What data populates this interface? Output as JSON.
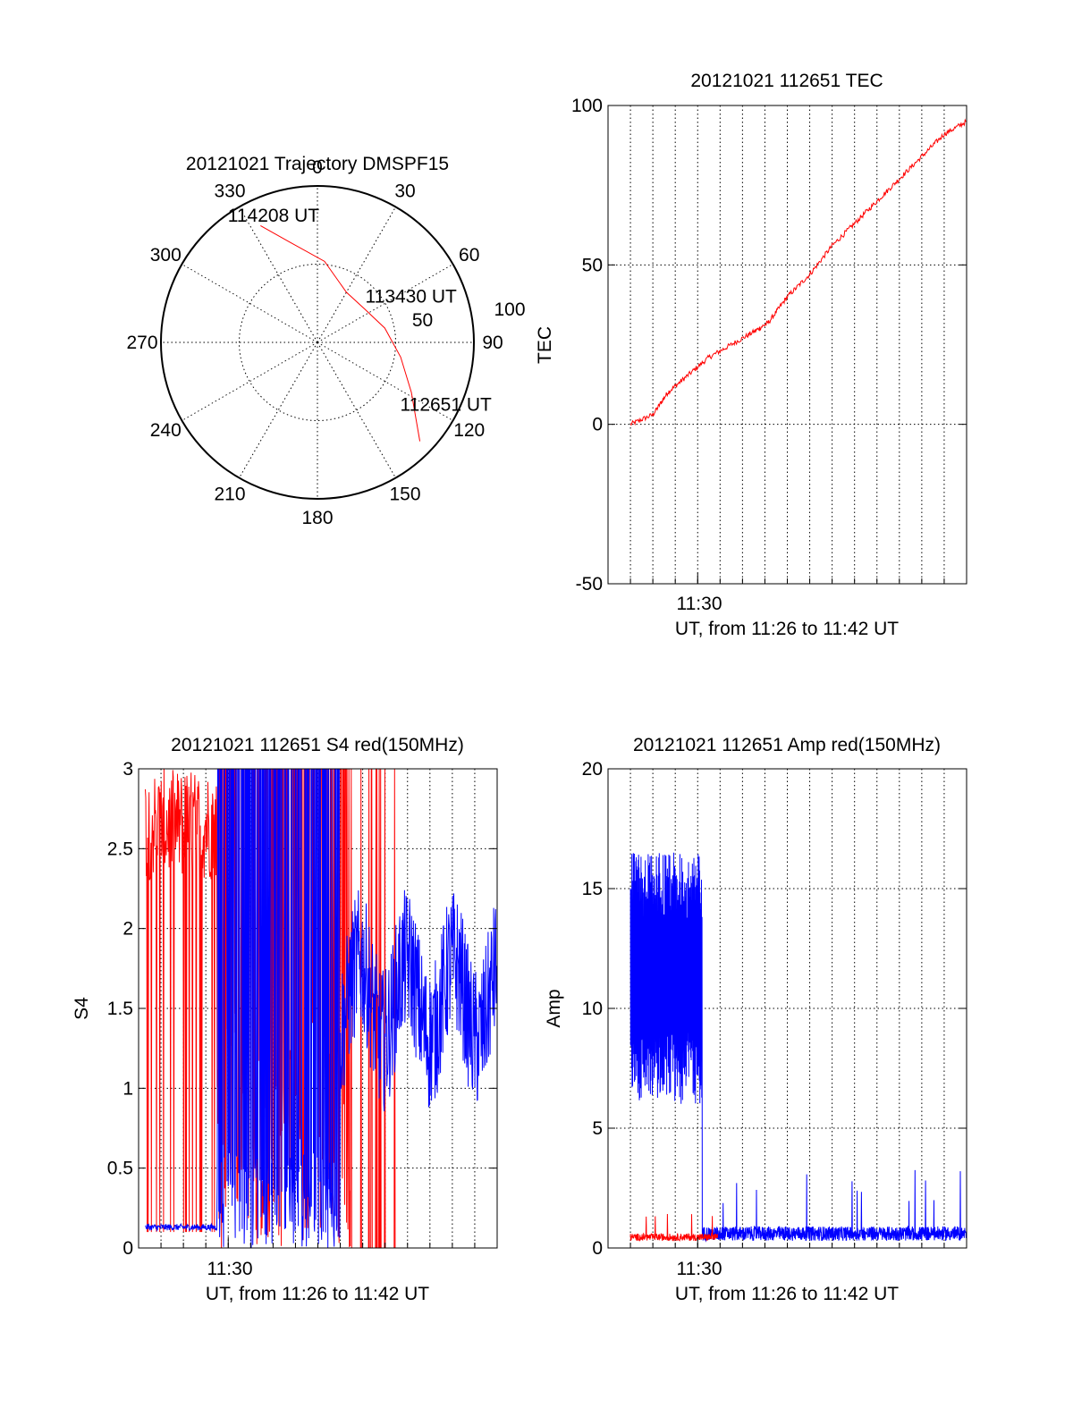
{
  "chart_data": [
    {
      "id": "polar",
      "type": "polar",
      "title": "20121021 Trajectory DMSPF15",
      "angle_labels": [
        "0",
        "30",
        "60",
        "90",
        "120",
        "150",
        "180",
        "210",
        "240",
        "270",
        "300",
        "330"
      ],
      "radial_ticks": [
        50,
        100
      ],
      "radial_tick_labels": [
        "50",
        "100"
      ],
      "rmax": 100,
      "track_color": "#ff0000",
      "track": [
        {
          "az": 134,
          "r": 91
        },
        {
          "az": 128,
          "r": 80
        },
        {
          "az": 118,
          "r": 68
        },
        {
          "az": 100,
          "r": 54
        },
        {
          "az": 78,
          "r": 44
        },
        {
          "az": 55,
          "r": 37
        },
        {
          "az": 30,
          "r": 37
        },
        {
          "az": 5,
          "r": 52
        },
        {
          "az": -15,
          "r": 66
        },
        {
          "az": -26,
          "r": 83
        }
      ],
      "annotations": [
        {
          "text": "114208 UT",
          "az": -20,
          "r": 82
        },
        {
          "text": "113430 UT",
          "az": 67,
          "r": 65
        },
        {
          "text": "112651 UT",
          "az": 118,
          "r": 93
        }
      ]
    },
    {
      "id": "tec",
      "type": "line",
      "title": "20121021 112651 TEC",
      "ylabel": "TEC",
      "xlabel": "UT, from 11:26 to 11:42 UT",
      "xlim": [
        "11:26",
        "11:42"
      ],
      "ylim": [
        -50,
        100
      ],
      "yticks": [
        -50,
        0,
        50,
        100
      ],
      "ytick_labels": [
        "-50",
        "0",
        "50",
        "100"
      ],
      "xtick_label": "11:30",
      "xtick_at": "11:30",
      "series": [
        {
          "color": "#ff0000",
          "x": [
            "11:27:00",
            "11:28:00",
            "11:28:40",
            "11:29:30",
            "11:30:30",
            "11:31:30",
            "11:32:30",
            "11:33:10",
            "11:34:00",
            "11:35:00",
            "11:36:00",
            "11:37:00",
            "11:38:00",
            "11:39:00",
            "11:40:00",
            "11:41:00",
            "11:42:00"
          ],
          "y": [
            0,
            3,
            10,
            15,
            21,
            25,
            29,
            32,
            40,
            47,
            56,
            63,
            70,
            77,
            84,
            91,
            95
          ]
        }
      ]
    },
    {
      "id": "s4",
      "type": "line",
      "title": "20121021 112651 S4 red(150MHz)",
      "ylabel": "S4",
      "xlabel": "UT, from 11:26 to 11:42 UT",
      "xlim": [
        "11:26",
        "11:42"
      ],
      "ylim": [
        0,
        3
      ],
      "yticks": [
        0,
        0.5,
        1,
        1.5,
        2,
        2.5,
        3
      ],
      "ytick_labels": [
        "0",
        "0.5",
        "1",
        "1.5",
        "2",
        "2.5",
        "3"
      ],
      "xtick_label": "11:30",
      "xtick_at": "11:30",
      "series": [
        {
          "color": "#ff0000",
          "note_values": "red spikes"
        },
        {
          "color": "#0000ff",
          "note_values": "blue trace"
        }
      ]
    },
    {
      "id": "amp",
      "type": "line",
      "title": "20121021 112651 Amp red(150MHz)",
      "ylabel": "Amp",
      "xlabel": "UT, from 11:26 to 11:42 UT",
      "xlim": [
        "11:26",
        "11:42"
      ],
      "ylim": [
        0,
        20
      ],
      "yticks": [
        0,
        5,
        10,
        15,
        20
      ],
      "ytick_labels": [
        "0",
        "5",
        "10",
        "15",
        "20"
      ],
      "xtick_label": "11:30",
      "xtick_at": "11:30",
      "series": [
        {
          "color": "#ff0000",
          "note_values": "red low trace"
        },
        {
          "color": "#0000ff",
          "note_values": "blue trace"
        }
      ]
    }
  ]
}
